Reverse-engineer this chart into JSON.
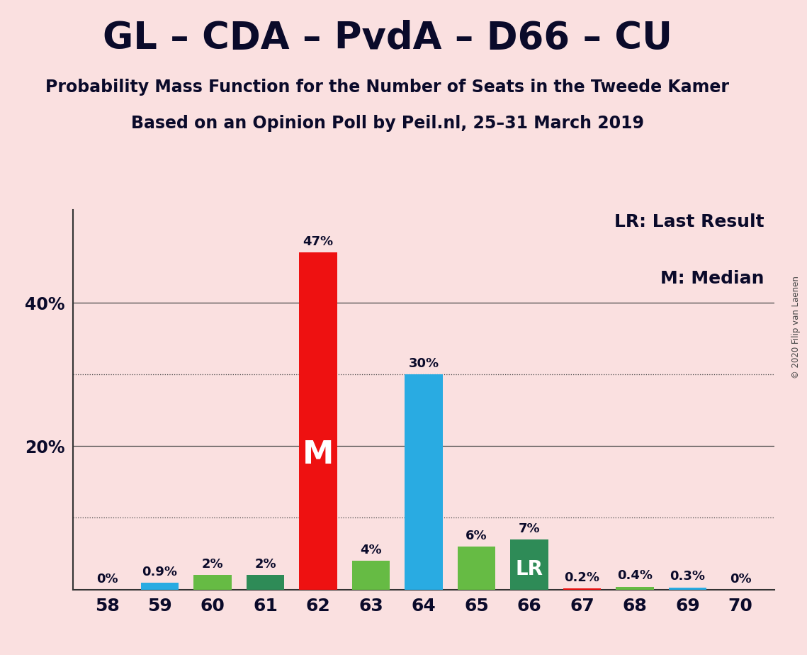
{
  "title": "GL – CDA – PvdA – D66 – CU",
  "subtitle1": "Probability Mass Function for the Number of Seats in the Tweede Kamer",
  "subtitle2": "Based on an Opinion Poll by Peil.nl, 25–31 March 2019",
  "copyright": "© 2020 Filip van Laenen",
  "seats": [
    58,
    59,
    60,
    61,
    62,
    63,
    64,
    65,
    66,
    67,
    68,
    69,
    70
  ],
  "values": [
    0.001,
    0.9,
    2.0,
    2.0,
    47.0,
    4.0,
    30.0,
    6.0,
    7.0,
    0.2,
    0.4,
    0.3,
    0.001
  ],
  "labels": [
    "0%",
    "0.9%",
    "2%",
    "2%",
    "47%",
    "4%",
    "30%",
    "6%",
    "7%",
    "0.2%",
    "0.4%",
    "0.3%",
    "0%"
  ],
  "bar_colors": [
    "#EE1111",
    "#29ABE2",
    "#66BB44",
    "#2E8B57",
    "#EE1111",
    "#66BB44",
    "#29ABE2",
    "#66BB44",
    "#2E8B57",
    "#EE1111",
    "#66BB44",
    "#29ABE2",
    "#EE1111"
  ],
  "median_seat": 62,
  "lr_seat": 66,
  "background_color": "#FAE0E0",
  "title_fontsize": 38,
  "subtitle_fontsize": 17,
  "legend_text1": "LR: Last Result",
  "legend_text2": "M: Median",
  "ytick_positions": [
    20,
    40
  ],
  "ytick_labels": [
    "20%",
    "40%"
  ],
  "dotted_lines": [
    10,
    30
  ],
  "solid_lines": [
    20,
    40
  ],
  "ylim_max": 53
}
